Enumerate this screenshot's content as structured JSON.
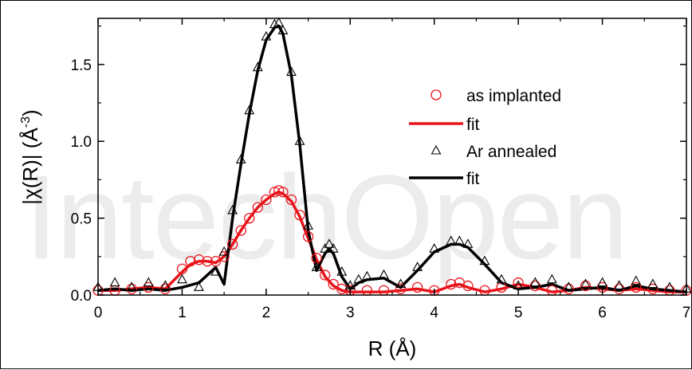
{
  "watermark": "IntechOpen",
  "chart_data": {
    "type": "line",
    "xlabel": "R (Å)",
    "ylabel_main": "|χ(R)| (Å",
    "ylabel_sup": "-3",
    "ylabel_end": ")",
    "xlim": [
      0,
      7
    ],
    "ylim": [
      0,
      1.8
    ],
    "xticks": [
      "0",
      "1",
      "2",
      "3",
      "4",
      "5",
      "6",
      "7"
    ],
    "yticks": [
      "0.0",
      "0.5",
      "1.0",
      "1.5"
    ],
    "legend_position": "top-right",
    "series": [
      {
        "name": "as implanted",
        "style": "circle-markers",
        "color": "#e8141c",
        "x": [
          0.0,
          0.2,
          0.4,
          0.6,
          0.8,
          1.0,
          1.1,
          1.2,
          1.3,
          1.4,
          1.5,
          1.6,
          1.7,
          1.8,
          1.9,
          2.0,
          2.1,
          2.15,
          2.2,
          2.3,
          2.4,
          2.5,
          2.6,
          2.7,
          2.8,
          2.9,
          3.0,
          3.2,
          3.4,
          3.6,
          3.8,
          4.0,
          4.2,
          4.3,
          4.4,
          4.6,
          4.8,
          5.0,
          5.2,
          5.4,
          5.6,
          5.8,
          6.0,
          6.2,
          6.4,
          6.6,
          6.8,
          7.0
        ],
        "values": [
          0.03,
          0.03,
          0.04,
          0.05,
          0.04,
          0.17,
          0.22,
          0.23,
          0.22,
          0.22,
          0.25,
          0.33,
          0.42,
          0.5,
          0.57,
          0.62,
          0.67,
          0.68,
          0.67,
          0.62,
          0.52,
          0.38,
          0.24,
          0.13,
          0.07,
          0.04,
          0.03,
          0.03,
          0.03,
          0.04,
          0.05,
          0.03,
          0.07,
          0.08,
          0.06,
          0.03,
          0.05,
          0.08,
          0.06,
          0.03,
          0.04,
          0.06,
          0.05,
          0.04,
          0.05,
          0.04,
          0.03,
          0.03
        ]
      },
      {
        "name": "fit",
        "style": "line",
        "color": "#e8141c",
        "x": [
          0.0,
          0.2,
          0.4,
          0.6,
          0.8,
          1.0,
          1.1,
          1.2,
          1.3,
          1.4,
          1.5,
          1.6,
          1.7,
          1.8,
          1.9,
          2.0,
          2.1,
          2.15,
          2.2,
          2.3,
          2.4,
          2.5,
          2.6,
          2.7,
          2.8,
          2.9,
          3.0,
          3.2,
          3.4,
          3.6,
          3.8,
          4.0,
          4.2,
          4.3,
          4.4,
          4.6,
          4.8,
          5.0,
          5.2,
          5.4,
          5.6,
          5.8,
          6.0,
          6.2,
          6.4,
          6.6,
          6.8,
          7.0
        ],
        "values": [
          0.03,
          0.03,
          0.04,
          0.05,
          0.04,
          0.15,
          0.2,
          0.22,
          0.22,
          0.21,
          0.25,
          0.33,
          0.42,
          0.5,
          0.57,
          0.62,
          0.66,
          0.67,
          0.66,
          0.61,
          0.51,
          0.37,
          0.23,
          0.12,
          0.06,
          0.03,
          0.02,
          0.02,
          0.02,
          0.03,
          0.04,
          0.02,
          0.06,
          0.07,
          0.05,
          0.02,
          0.04,
          0.07,
          0.05,
          0.02,
          0.03,
          0.05,
          0.04,
          0.03,
          0.04,
          0.03,
          0.02,
          0.02
        ]
      },
      {
        "name": "Ar annealed",
        "style": "triangle-markers",
        "color": "#000000",
        "x": [
          0.0,
          0.2,
          0.4,
          0.6,
          0.8,
          1.0,
          1.2,
          1.4,
          1.5,
          1.6,
          1.7,
          1.8,
          1.9,
          2.0,
          2.1,
          2.15,
          2.2,
          2.3,
          2.4,
          2.5,
          2.6,
          2.7,
          2.75,
          2.8,
          2.9,
          3.0,
          3.1,
          3.2,
          3.4,
          3.6,
          3.8,
          4.0,
          4.2,
          4.3,
          4.4,
          4.6,
          4.8,
          5.0,
          5.2,
          5.4,
          5.6,
          5.8,
          6.0,
          6.2,
          6.4,
          6.6,
          6.8,
          7.0
        ],
        "values": [
          0.05,
          0.08,
          0.05,
          0.08,
          0.06,
          0.1,
          0.05,
          0.15,
          0.28,
          0.55,
          0.88,
          1.2,
          1.48,
          1.68,
          1.76,
          1.77,
          1.72,
          1.45,
          1.0,
          0.45,
          0.18,
          0.3,
          0.33,
          0.3,
          0.15,
          0.06,
          0.1,
          0.12,
          0.13,
          0.07,
          0.18,
          0.3,
          0.35,
          0.35,
          0.33,
          0.22,
          0.1,
          0.06,
          0.08,
          0.1,
          0.05,
          0.07,
          0.08,
          0.06,
          0.09,
          0.07,
          0.05,
          0.04
        ]
      },
      {
        "name": "fit",
        "style": "line",
        "color": "#000000",
        "x": [
          0.0,
          0.2,
          0.4,
          0.6,
          0.8,
          1.0,
          1.2,
          1.4,
          1.5,
          1.6,
          1.7,
          1.8,
          1.9,
          2.0,
          2.1,
          2.15,
          2.2,
          2.3,
          2.4,
          2.5,
          2.6,
          2.7,
          2.75,
          2.8,
          2.9,
          3.0,
          3.1,
          3.2,
          3.4,
          3.6,
          3.8,
          4.0,
          4.2,
          4.3,
          4.4,
          4.6,
          4.8,
          5.0,
          5.2,
          5.4,
          5.6,
          5.8,
          6.0,
          6.2,
          6.4,
          6.6,
          6.8,
          7.0
        ],
        "values": [
          0.03,
          0.04,
          0.03,
          0.04,
          0.03,
          0.05,
          0.08,
          0.18,
          0.07,
          0.5,
          0.85,
          1.18,
          1.46,
          1.66,
          1.74,
          1.75,
          1.7,
          1.43,
          0.98,
          0.42,
          0.16,
          0.27,
          0.3,
          0.27,
          0.12,
          0.04,
          0.08,
          0.1,
          0.11,
          0.05,
          0.16,
          0.28,
          0.33,
          0.33,
          0.31,
          0.2,
          0.08,
          0.04,
          0.05,
          0.07,
          0.03,
          0.04,
          0.05,
          0.03,
          0.06,
          0.04,
          0.03,
          0.02
        ]
      }
    ]
  }
}
